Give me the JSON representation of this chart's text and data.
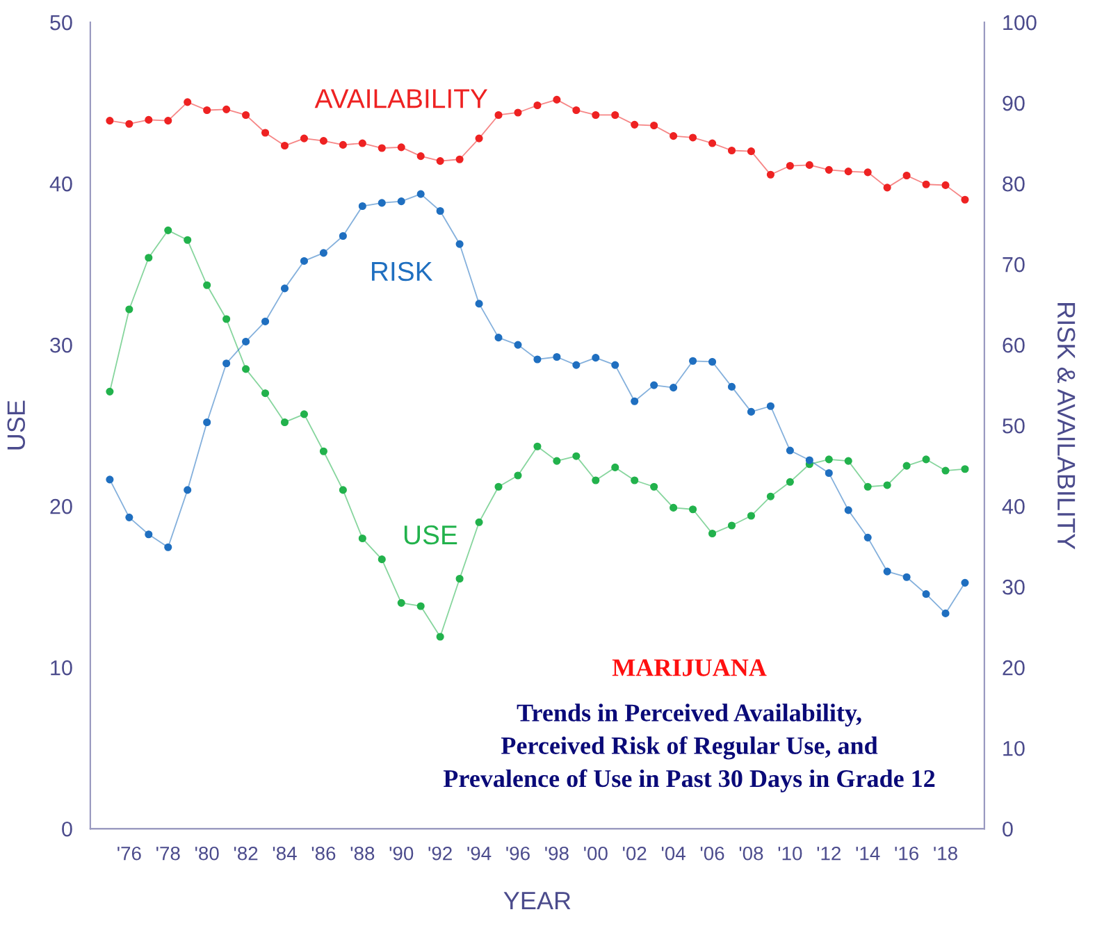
{
  "chart_data": {
    "type": "line",
    "title": "MARIJUANA",
    "subtitle": "Trends in Perceived Availability,\nPerceived Risk of Regular Use, and\nPrevalence of Use in Past 30 Days in Grade 12",
    "xlabel": "YEAR",
    "ylabel": "USE",
    "y2label": "RISK & AVAILABILITY",
    "x": [
      1975,
      1976,
      1977,
      1978,
      1979,
      1980,
      1981,
      1982,
      1983,
      1984,
      1985,
      1986,
      1987,
      1988,
      1989,
      1990,
      1991,
      1992,
      1993,
      1994,
      1995,
      1996,
      1997,
      1998,
      1999,
      2000,
      2001,
      2002,
      2003,
      2004,
      2005,
      2006,
      2007,
      2008,
      2009,
      2010,
      2011,
      2012,
      2013,
      2014,
      2015,
      2016,
      2017,
      2018,
      2019
    ],
    "series": [
      {
        "name": "AVAILABILITY",
        "color": "#ee2222",
        "axis": "y2",
        "values": [
          87.8,
          87.4,
          87.9,
          87.8,
          90.1,
          89.1,
          89.2,
          88.5,
          86.3,
          84.7,
          85.6,
          85.3,
          84.8,
          85.0,
          84.4,
          84.5,
          83.4,
          82.8,
          83.0,
          85.6,
          88.5,
          88.8,
          89.7,
          90.4,
          89.1,
          88.5,
          88.5,
          87.3,
          87.2,
          85.9,
          85.7,
          85.0,
          84.1,
          84.0,
          81.1,
          82.2,
          82.3,
          81.7,
          81.5,
          81.4,
          79.5,
          81.0,
          79.9,
          79.8,
          78.0
        ]
      },
      {
        "name": "RISK",
        "color": "#1f6fc0",
        "axis": "y2",
        "values": [
          43.3,
          38.6,
          36.5,
          34.9,
          42.0,
          50.4,
          57.7,
          60.4,
          62.9,
          67.0,
          70.4,
          71.4,
          73.5,
          77.2,
          77.6,
          77.8,
          78.7,
          76.6,
          72.5,
          65.1,
          60.9,
          60.0,
          58.2,
          58.5,
          57.5,
          58.4,
          57.5,
          53.0,
          55.0,
          54.7,
          58.0,
          57.9,
          54.8,
          51.7,
          52.4,
          46.9,
          45.7,
          44.1,
          39.5,
          36.1,
          31.9,
          31.2,
          29.1,
          26.7,
          30.5
        ]
      },
      {
        "name": "USE",
        "color": "#22b24c",
        "axis": "y",
        "values": [
          27.1,
          32.2,
          35.4,
          37.1,
          36.5,
          33.7,
          31.6,
          28.5,
          27.0,
          25.2,
          25.7,
          23.4,
          21.0,
          18.0,
          16.7,
          14.0,
          13.8,
          11.9,
          15.5,
          19.0,
          21.2,
          21.9,
          23.7,
          22.8,
          23.1,
          21.6,
          22.4,
          21.6,
          21.2,
          19.9,
          19.8,
          18.3,
          18.8,
          19.4,
          20.6,
          21.5,
          22.6,
          22.9,
          22.8,
          21.2,
          21.3,
          22.5,
          22.9,
          22.2,
          22.3
        ]
      }
    ],
    "marker": "circle",
    "line_style": "solid",
    "grid": false,
    "legend": false,
    "xlim": [
      1974,
      2020
    ],
    "xticks": [
      {
        "value": 1976,
        "label": "'76"
      },
      {
        "value": 1978,
        "label": "'78"
      },
      {
        "value": 1980,
        "label": "'80"
      },
      {
        "value": 1982,
        "label": "'82"
      },
      {
        "value": 1984,
        "label": "'84"
      },
      {
        "value": 1986,
        "label": "'86"
      },
      {
        "value": 1988,
        "label": "'88"
      },
      {
        "value": 1990,
        "label": "'90"
      },
      {
        "value": 1992,
        "label": "'92"
      },
      {
        "value": 1994,
        "label": "'94"
      },
      {
        "value": 1996,
        "label": "'96"
      },
      {
        "value": 1998,
        "label": "'98"
      },
      {
        "value": 2000,
        "label": "'00"
      },
      {
        "value": 2002,
        "label": "'02"
      },
      {
        "value": 2004,
        "label": "'04"
      },
      {
        "value": 2006,
        "label": "'06"
      },
      {
        "value": 2008,
        "label": "'08"
      },
      {
        "value": 2010,
        "label": "'10"
      },
      {
        "value": 2012,
        "label": "'12"
      },
      {
        "value": 2014,
        "label": "'14"
      },
      {
        "value": 2016,
        "label": "'16"
      },
      {
        "value": 2018,
        "label": "'18"
      }
    ],
    "ylim": [
      0,
      50
    ],
    "yticks": [
      0,
      10,
      20,
      30,
      40,
      50
    ],
    "y2lim": [
      0,
      100
    ],
    "y2ticks": [
      0,
      10,
      20,
      30,
      40,
      50,
      60,
      70,
      80,
      90,
      100
    ]
  }
}
